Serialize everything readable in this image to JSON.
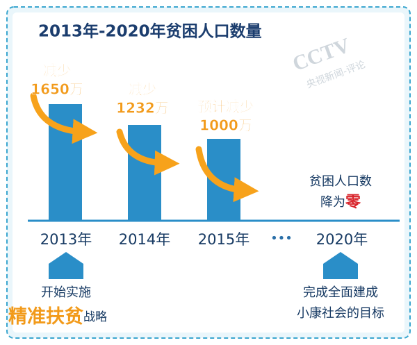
{
  "title": "2013年-2020年贫困人口数量",
  "watermark": {
    "logo": "CCTV",
    "source": "央视新闻-评论"
  },
  "columns": [
    {
      "year": "2013年",
      "note": [
        "减少",
        "1650万"
      ]
    },
    {
      "year": "2014年",
      "note": [
        "减少",
        "1232万"
      ]
    },
    {
      "year": "2015年",
      "note": [
        "预计减少",
        "1000万"
      ]
    }
  ],
  "ellipsis": "•••",
  "final": {
    "year": "2020年",
    "note": [
      "贫困人口数",
      "降为"
    ],
    "highlight": "零"
  },
  "start": {
    "text": "开始实施",
    "highlight": "精准扶贫",
    "suffix": "战略"
  },
  "goal": [
    "完成全面建成",
    "小康社会的目标"
  ]
}
